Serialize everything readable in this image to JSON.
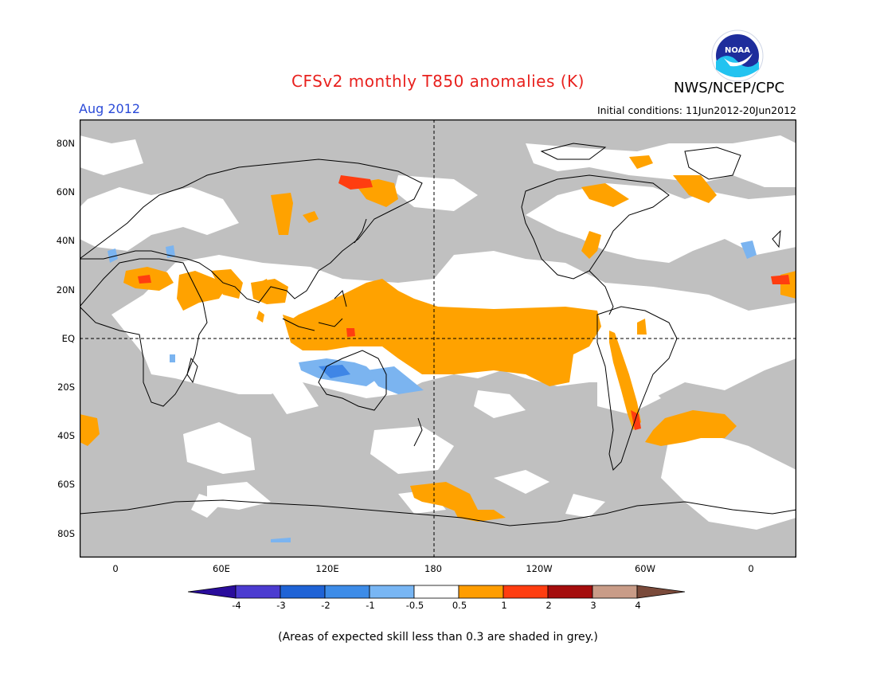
{
  "header": {
    "title": "CFSv2 monthly T850 anomalies (K)",
    "month": "Aug 2012",
    "initial_conditions": "Initial conditions: 11Jun2012-20Jun2012",
    "organization": "NWS/NCEP/CPC",
    "logo_text": "NOAA"
  },
  "axes": {
    "lat_labels": [
      "80N",
      "60N",
      "40N",
      "20N",
      "EQ",
      "20S",
      "40S",
      "60S",
      "80S"
    ],
    "lon_labels": [
      "0",
      "60E",
      "120E",
      "180",
      "120W",
      "60W",
      "0"
    ]
  },
  "colorbar": {
    "labels": [
      "-4",
      "-3",
      "-2",
      "-1",
      "-0.5",
      "0.5",
      "1",
      "2",
      "3",
      "4"
    ],
    "colors": [
      "#2a0d9c",
      "#4b3bd0",
      "#1f63d6",
      "#3d8ce8",
      "#78b6f4",
      "#ffffff",
      "#ff9d00",
      "#ff3d10",
      "#a50d0d",
      "#c99c88",
      "#7a4a3a"
    ]
  },
  "map": {
    "grey_color": "#c0c0c0",
    "positive_color": "#ffa200",
    "strong_positive_color": "#ff3d10",
    "negative_color": "#7bb4f0",
    "strong_negative_color": "#3f86e6"
  },
  "footer": {
    "note": "(Areas of expected skill less than 0.3 are shaded in grey.)"
  }
}
